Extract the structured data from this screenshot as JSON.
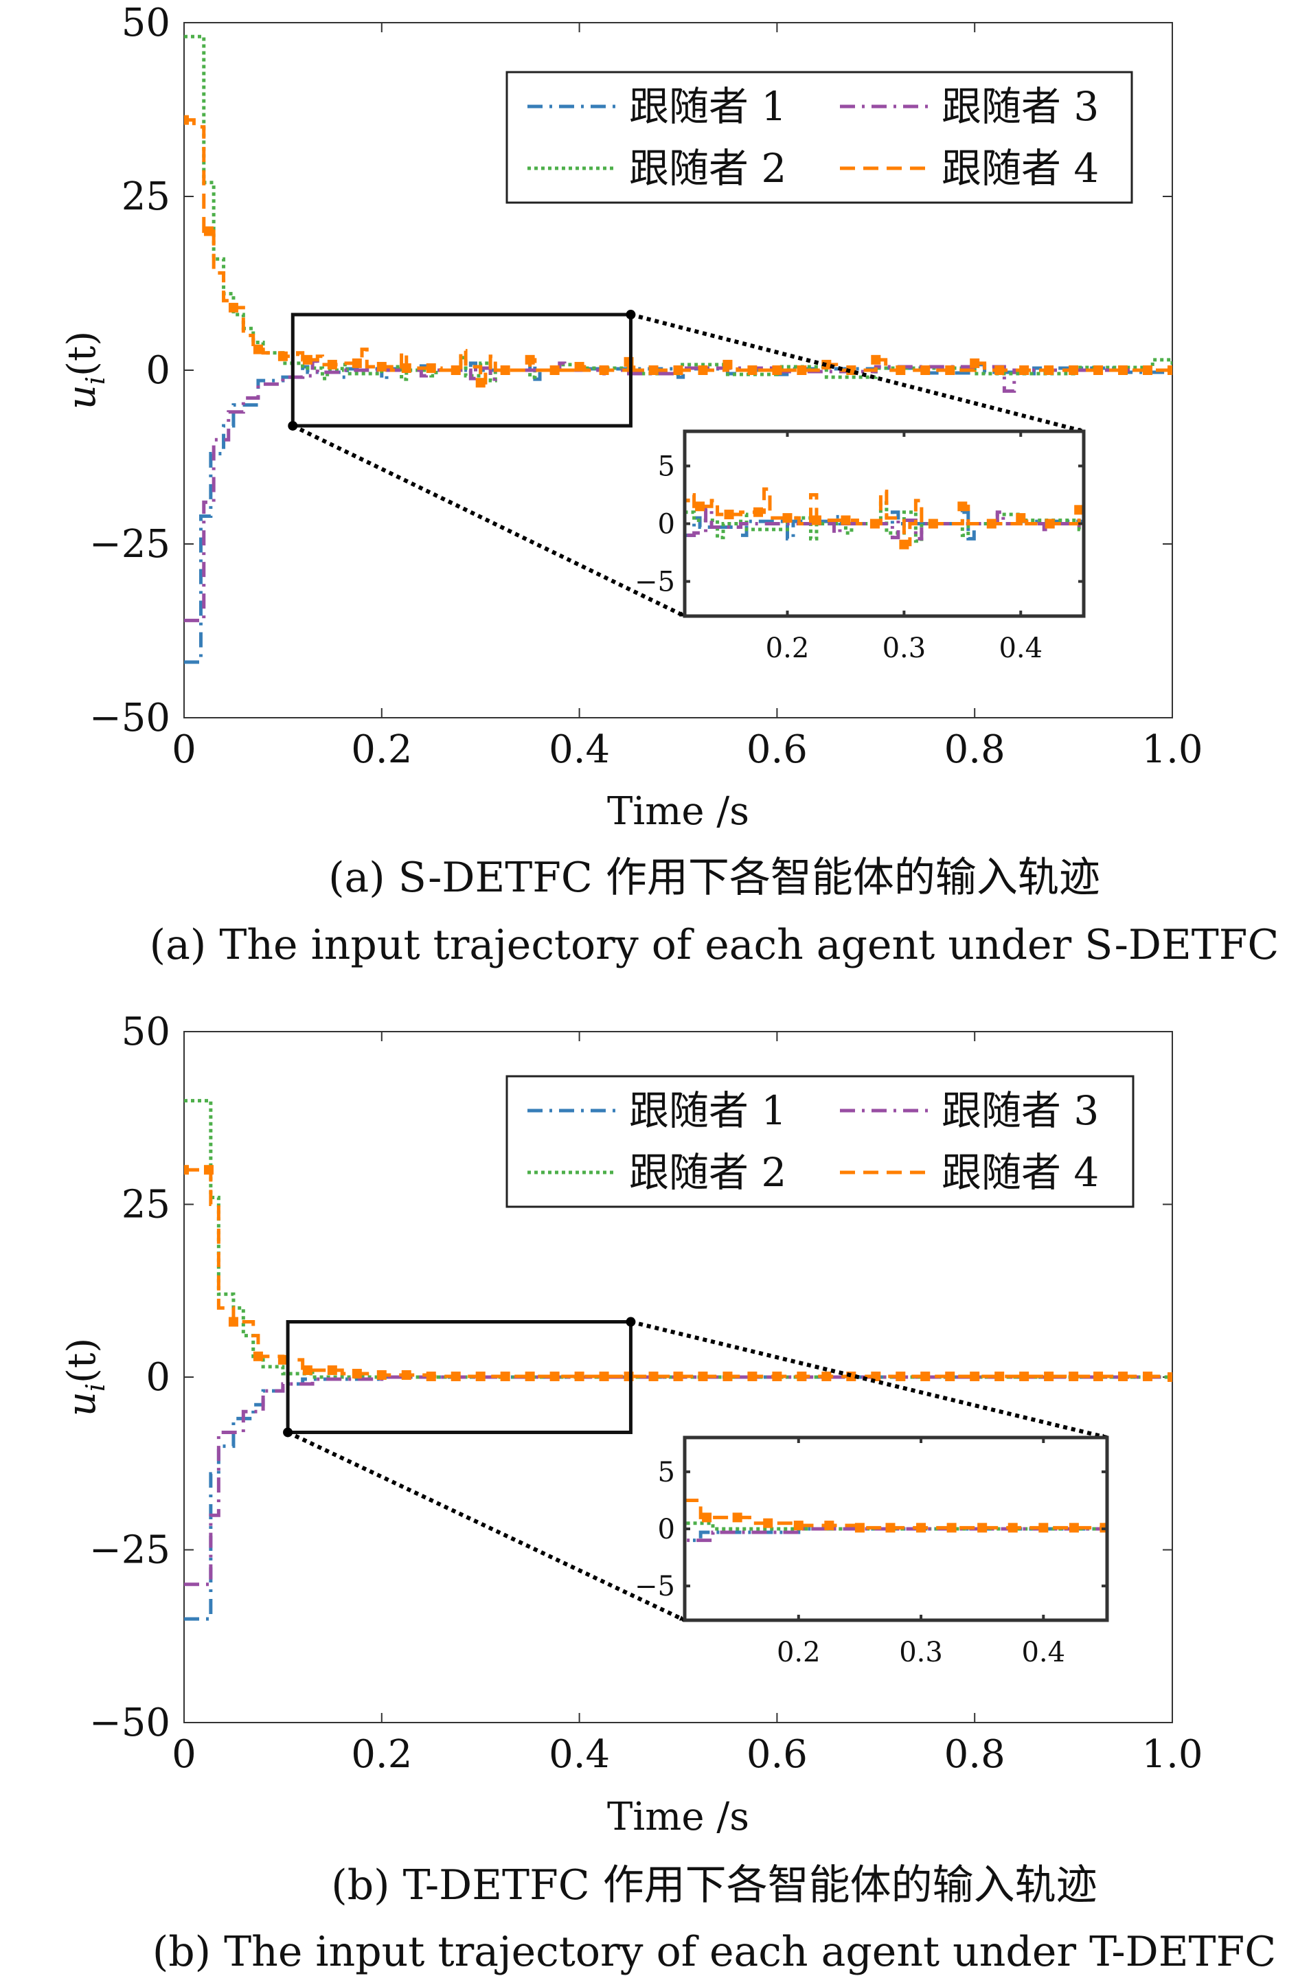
{
  "chart_data": [
    {
      "type": "line",
      "panel": "a",
      "xlabel": "Time /s",
      "ylabel": "u_i(t)",
      "ylabel_main": "u",
      "ylabel_sub": "i",
      "ylabel_rest": "(t)",
      "xlim": [
        0,
        1.0
      ],
      "ylim": [
        -50,
        50
      ],
      "xticks": [
        "0",
        "0.2",
        "0.4",
        "0.6",
        "0.8",
        "1.0"
      ],
      "xtick_values": [
        0,
        0.2,
        0.4,
        0.6,
        0.8,
        1.0
      ],
      "yticks": [
        "50",
        "25",
        "0",
        "−25",
        "−50"
      ],
      "ytick_values": [
        50,
        25,
        0,
        -25,
        -50
      ],
      "caption_cn": "(a) S-DETFC 作用下各智能体的输入轨迹",
      "caption_en": "(a) The input trajectory of each agent under S-DETFC",
      "legend_position": "top-right",
      "inset": {
        "xlim": [
          0.112,
          0.454
        ],
        "ylim": [
          -8,
          8
        ],
        "xticks": [
          "0.2",
          "0.3",
          "0.4"
        ],
        "xtick_values": [
          0.2,
          0.3,
          0.4
        ],
        "yticks": [
          "5",
          "0",
          "−5"
        ],
        "ytick_values": [
          5,
          0,
          -5
        ]
      },
      "series": [
        {
          "name": "跟随者 1",
          "color": "#377eb8",
          "style": "dashdot",
          "points": [
            [
              0,
              -42
            ],
            [
              0.017,
              -21
            ],
            [
              0.027,
              -12
            ],
            [
              0.04,
              -8
            ],
            [
              0.05,
              -5
            ],
            [
              0.075,
              -1.5
            ],
            [
              0.1,
              -1
            ],
            [
              0.12,
              0.5
            ],
            [
              0.125,
              -0.3
            ],
            [
              0.14,
              -0.3
            ],
            [
              0.16,
              -1
            ],
            [
              0.165,
              0.2
            ],
            [
              0.2,
              -1.3
            ],
            [
              0.205,
              0.2
            ],
            [
              0.24,
              0.6
            ],
            [
              0.245,
              0
            ],
            [
              0.29,
              1
            ],
            [
              0.295,
              0
            ],
            [
              0.35,
              1
            ],
            [
              0.355,
              -1.3
            ],
            [
              0.36,
              0
            ],
            [
              0.4,
              0.2
            ],
            [
              0.5,
              -1
            ],
            [
              0.505,
              0.2
            ],
            [
              0.55,
              -0.5
            ],
            [
              0.56,
              0
            ],
            [
              0.6,
              -0.6
            ],
            [
              0.61,
              0.2
            ],
            [
              0.7,
              0.3
            ],
            [
              0.75,
              -0.4
            ],
            [
              0.8,
              0.8
            ],
            [
              0.81,
              -0.3
            ],
            [
              0.85,
              -0.5
            ],
            [
              0.86,
              0.3
            ],
            [
              0.9,
              0.3
            ],
            [
              0.95,
              -0.3
            ],
            [
              1.0,
              0
            ]
          ]
        },
        {
          "name": "跟随者 2",
          "color": "#4daf4a",
          "style": "dotted",
          "points": [
            [
              0,
              48
            ],
            [
              0.02,
              27
            ],
            [
              0.03,
              16
            ],
            [
              0.04,
              11
            ],
            [
              0.05,
              8
            ],
            [
              0.06,
              6
            ],
            [
              0.07,
              4
            ],
            [
              0.08,
              2.5
            ],
            [
              0.1,
              1
            ],
            [
              0.12,
              0.3
            ],
            [
              0.14,
              -1.2
            ],
            [
              0.145,
              0
            ],
            [
              0.16,
              0.8
            ],
            [
              0.165,
              -0.5
            ],
            [
              0.2,
              0.5
            ],
            [
              0.22,
              -1.3
            ],
            [
              0.225,
              0
            ],
            [
              0.25,
              -0.8
            ],
            [
              0.255,
              0
            ],
            [
              0.28,
              1.8
            ],
            [
              0.285,
              -0.8
            ],
            [
              0.3,
              1
            ],
            [
              0.31,
              -1.5
            ],
            [
              0.315,
              0
            ],
            [
              0.35,
              -1
            ],
            [
              0.355,
              0
            ],
            [
              0.38,
              0.8
            ],
            [
              0.4,
              0.3
            ],
            [
              0.45,
              -0.5
            ],
            [
              0.5,
              0.8
            ],
            [
              0.55,
              -0.6
            ],
            [
              0.6,
              0.5
            ],
            [
              0.65,
              -1
            ],
            [
              0.7,
              0.3
            ],
            [
              0.8,
              -0.5
            ],
            [
              0.9,
              0.4
            ],
            [
              0.98,
              1.5
            ],
            [
              1,
              0
            ]
          ]
        },
        {
          "name": "跟随者 3",
          "color": "#984ea3",
          "style": "dashdot",
          "points": [
            [
              0,
              -36
            ],
            [
              0.02,
              -19
            ],
            [
              0.03,
              -10
            ],
            [
              0.045,
              -6
            ],
            [
              0.06,
              -4
            ],
            [
              0.075,
              -2
            ],
            [
              0.1,
              -1
            ],
            [
              0.12,
              -0.8
            ],
            [
              0.13,
              1.3
            ],
            [
              0.135,
              -0.3
            ],
            [
              0.16,
              0
            ],
            [
              0.24,
              -0.8
            ],
            [
              0.245,
              0
            ],
            [
              0.29,
              -1.2
            ],
            [
              0.295,
              0.3
            ],
            [
              0.31,
              -1.3
            ],
            [
              0.315,
              0
            ],
            [
              0.38,
              1
            ],
            [
              0.385,
              0
            ],
            [
              0.42,
              -0.5
            ],
            [
              0.425,
              0
            ],
            [
              0.45,
              -0.5
            ],
            [
              0.5,
              0.3
            ],
            [
              0.6,
              -0.2
            ],
            [
              0.7,
              0.5
            ],
            [
              0.83,
              -3
            ],
            [
              0.84,
              0
            ],
            [
              1,
              0
            ]
          ]
        },
        {
          "name": "跟随者 4",
          "color": "#ff7f00",
          "style": "dashed-square",
          "points": [
            [
              0,
              36
            ],
            [
              0.01,
              35
            ],
            [
              0.02,
              20
            ],
            [
              0.03,
              14
            ],
            [
              0.04,
              10
            ],
            [
              0.05,
              9
            ],
            [
              0.06,
              5
            ],
            [
              0.07,
              3
            ],
            [
              0.08,
              2.5
            ],
            [
              0.1,
              2
            ],
            [
              0.115,
              2.5
            ],
            [
              0.12,
              1.5
            ],
            [
              0.135,
              2
            ],
            [
              0.14,
              0.8
            ],
            [
              0.16,
              1
            ],
            [
              0.18,
              3
            ],
            [
              0.185,
              0.5
            ],
            [
              0.21,
              0
            ],
            [
              0.22,
              2.5
            ],
            [
              0.225,
              0.3
            ],
            [
              0.26,
              0
            ],
            [
              0.28,
              2.8
            ],
            [
              0.285,
              0.5
            ],
            [
              0.3,
              -1.8
            ],
            [
              0.305,
              0
            ],
            [
              0.31,
              2
            ],
            [
              0.315,
              0
            ],
            [
              0.35,
              1.5
            ],
            [
              0.355,
              0
            ],
            [
              0.4,
              0.5
            ],
            [
              0.405,
              0
            ],
            [
              0.45,
              1.2
            ],
            [
              0.455,
              0
            ],
            [
              0.55,
              0.8
            ],
            [
              0.56,
              0
            ],
            [
              0.6,
              0
            ],
            [
              0.65,
              0.8
            ],
            [
              0.66,
              0
            ],
            [
              0.7,
              1.5
            ],
            [
              0.71,
              0
            ],
            [
              0.8,
              1
            ],
            [
              0.81,
              0
            ],
            [
              1,
              0
            ]
          ]
        }
      ]
    },
    {
      "type": "line",
      "panel": "b",
      "xlabel": "Time /s",
      "ylabel": "u_i(t)",
      "ylabel_main": "u",
      "ylabel_sub": "i",
      "ylabel_rest": "(t)",
      "xlim": [
        0,
        1.0
      ],
      "ylim": [
        -50,
        50
      ],
      "xticks": [
        "0",
        "0.2",
        "0.4",
        "0.6",
        "0.8",
        "1.0"
      ],
      "xtick_values": [
        0,
        0.2,
        0.4,
        0.6,
        0.8,
        1.0
      ],
      "yticks": [
        "50",
        "25",
        "0",
        "−25",
        "−50"
      ],
      "ytick_values": [
        50,
        25,
        0,
        -25,
        -50
      ],
      "caption_cn": "(b) T-DETFC 作用下各智能体的输入轨迹",
      "caption_en": "(b) The input trajectory of each agent under T-DETFC",
      "legend_position": "top-right",
      "inset": {
        "xlim": [
          0.107,
          0.452
        ],
        "ylim": [
          -8,
          8
        ],
        "xticks": [
          "0.2",
          "0.3",
          "0.4"
        ],
        "xtick_values": [
          0.2,
          0.3,
          0.4
        ],
        "yticks": [
          "5",
          "0",
          "−5"
        ],
        "ytick_values": [
          5,
          0,
          -5
        ]
      },
      "series": [
        {
          "name": "跟随者 1",
          "color": "#377eb8",
          "style": "dashdot",
          "points": [
            [
              0,
              -35
            ],
            [
              0.027,
              -14
            ],
            [
              0.035,
              -10
            ],
            [
              0.05,
              -6
            ],
            [
              0.07,
              -4
            ],
            [
              0.08,
              -2
            ],
            [
              0.1,
              -1
            ],
            [
              0.12,
              -0.3
            ],
            [
              0.2,
              0
            ],
            [
              1,
              0
            ]
          ]
        },
        {
          "name": "跟随者 2",
          "color": "#4daf4a",
          "style": "dotted",
          "points": [
            [
              0,
              40
            ],
            [
              0.027,
              26
            ],
            [
              0.035,
              12
            ],
            [
              0.05,
              10
            ],
            [
              0.06,
              6
            ],
            [
              0.07,
              3
            ],
            [
              0.08,
              1.5
            ],
            [
              0.1,
              0.5
            ],
            [
              0.13,
              0
            ],
            [
              1,
              0
            ]
          ]
        },
        {
          "name": "跟随者 3",
          "color": "#984ea3",
          "style": "dashdot",
          "points": [
            [
              0,
              -30
            ],
            [
              0.027,
              -20
            ],
            [
              0.035,
              -8
            ],
            [
              0.05,
              -8
            ],
            [
              0.06,
              -5
            ],
            [
              0.08,
              -2
            ],
            [
              0.1,
              -1
            ],
            [
              0.13,
              -0.3
            ],
            [
              0.2,
              0
            ],
            [
              1,
              0
            ]
          ]
        },
        {
          "name": "跟随者 4",
          "color": "#ff7f00",
          "style": "dashed-square",
          "points": [
            [
              0,
              30
            ],
            [
              0.027,
              25
            ],
            [
              0.035,
              10
            ],
            [
              0.05,
              8
            ],
            [
              0.07,
              6
            ],
            [
              0.075,
              3
            ],
            [
              0.1,
              2.5
            ],
            [
              0.12,
              1
            ],
            [
              0.15,
              1
            ],
            [
              0.16,
              0.5
            ],
            [
              0.2,
              0.3
            ],
            [
              0.25,
              0.1
            ],
            [
              1,
              0
            ]
          ]
        }
      ]
    }
  ]
}
